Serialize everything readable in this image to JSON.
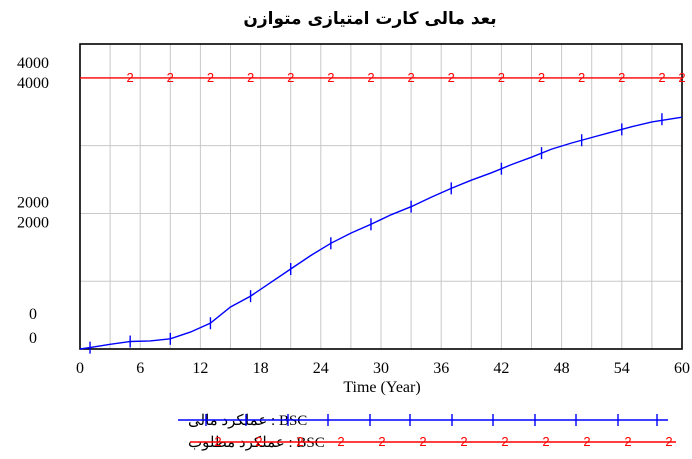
{
  "chart_data": {
    "type": "line",
    "title": "بعد مالی کارت امتیازی متوازن",
    "xlabel": "Time (Year)",
    "ylabel": "",
    "xlim": [
      0,
      60
    ],
    "x_ticks": [
      "0",
      "6",
      "12",
      "18",
      "24",
      "30",
      "36",
      "42",
      "48",
      "54",
      "60"
    ],
    "y_tick_labels": [
      {
        "value": 4000,
        "top": "4000",
        "bottom": "4000"
      },
      {
        "value": 2000,
        "top": "2000",
        "bottom": "2000"
      },
      {
        "value": 0,
        "top": "0",
        "bottom": "0"
      }
    ],
    "ylim": [
      0,
      4500
    ],
    "grid": true,
    "legend_position": "bottom-left",
    "series": [
      {
        "name": "BSC : عملکرد مالی",
        "marker": "1",
        "color": "#0000ff",
        "x": [
          0,
          1,
          3,
          5,
          7,
          9,
          11,
          13,
          15,
          17,
          19,
          21,
          23,
          25,
          27,
          29,
          31,
          33,
          35,
          37,
          39,
          41,
          43,
          45,
          47,
          49,
          51,
          53,
          55,
          57,
          60
        ],
        "y": [
          0,
          20,
          70,
          110,
          120,
          150,
          250,
          380,
          620,
          780,
          980,
          1180,
          1380,
          1560,
          1710,
          1840,
          1980,
          2100,
          2240,
          2370,
          2490,
          2600,
          2720,
          2830,
          2950,
          3040,
          3120,
          3200,
          3280,
          3350,
          3420
        ],
        "marker_x": [
          1,
          5,
          9,
          13,
          17,
          21,
          25,
          29,
          33,
          37,
          42,
          46,
          50,
          54,
          58
        ],
        "marker_y": [
          20,
          110,
          150,
          380,
          780,
          1180,
          1560,
          1840,
          2100,
          2370,
          2660,
          2890,
          3080,
          3240,
          3390
        ]
      },
      {
        "name": "BSC : عملکرد مطلوب",
        "marker": "2",
        "color": "#ff0000",
        "x": [
          0,
          60
        ],
        "y": [
          4000,
          4000
        ],
        "marker_x": [
          5,
          9,
          13,
          17,
          21,
          25,
          29,
          33,
          37,
          42,
          46,
          50,
          54,
          58,
          60
        ]
      }
    ]
  }
}
